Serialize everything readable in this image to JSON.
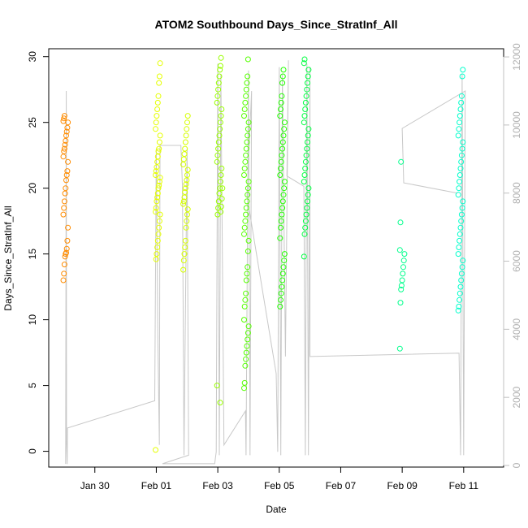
{
  "chart_data": {
    "type": "scatter",
    "title": "ATOM2 Southbound Days_Since_StratInf_All",
    "xlabel": "Date",
    "ylabel": "Days_Since_StratInf_All",
    "x_ticks": [
      "Jan 30",
      "Feb 01",
      "Feb 03",
      "Feb 05",
      "Feb 07",
      "Feb 09",
      "Feb 11"
    ],
    "x_tick_values": [
      0,
      2,
      4,
      6,
      8,
      10,
      12
    ],
    "xlim": [
      -1.5,
      13.3
    ],
    "ylim": [
      -1.2,
      30.6
    ],
    "yticks": [
      0,
      5,
      10,
      15,
      20,
      25,
      30
    ],
    "y2lim": [
      -48,
      12240
    ],
    "y2ticks": [
      0,
      2000,
      4000,
      6000,
      8000,
      10000,
      12000
    ],
    "y2_color": "#c0c0c0",
    "line_color": "#c8c8c8",
    "series": [
      {
        "color": "#ff8c00",
        "clusters": [
          {
            "x": -0.95,
            "y": [
              13,
              13.5,
              14.2,
              14.8,
              15,
              15.1,
              15.4,
              16,
              17,
              18,
              18.5,
              19,
              19.6,
              20,
              20.6,
              21,
              21.3,
              22,
              22.4,
              22.8,
              23,
              23.3,
              23.6,
              24,
              24.3,
              24.6,
              25,
              25.1,
              25.3,
              25.5
            ]
          }
        ]
      },
      {
        "color": "#e5ff00",
        "clusters": [
          {
            "x": 2.05,
            "y": [
              0.1,
              14.6,
              15,
              15.5,
              16,
              16.5,
              17,
              17.5,
              18,
              18.2,
              18.5,
              19,
              19.3,
              19.6,
              20,
              20.2,
              20.5,
              20.8,
              21,
              21.3,
              21.6,
              22,
              22.4,
              22.8,
              23,
              23.5,
              24,
              24.5,
              25,
              25.5,
              26,
              26.5,
              27,
              28,
              28.5,
              29.5
            ]
          }
        ]
      },
      {
        "color": "#d6ff00",
        "clusters": [
          {
            "x": 2.95,
            "y": [
              13.8,
              14.5,
              15,
              15.5,
              16,
              17,
              17.5,
              18,
              18.4,
              18.8,
              19,
              19.3,
              19.7,
              20,
              20.3,
              20.6,
              21,
              21.4,
              21.8,
              22.2,
              22.6,
              23,
              23.5,
              24,
              24.5,
              25,
              25.5
            ]
          }
        ]
      },
      {
        "color": "#99ff00",
        "clusters": [
          {
            "x": 4.05,
            "y": [
              5,
              18,
              18.5,
              19,
              19.6,
              20,
              20.5,
              21,
              21.5,
              22,
              22.5,
              23,
              23.5,
              24,
              24.5,
              25,
              25.5,
              26,
              26.5,
              27,
              27.5,
              28,
              28.5,
              29,
              29.3,
              29.9
            ]
          },
          {
            "x": 4.15,
            "y": [
              3.7,
              18.2,
              18.6,
              19.2,
              20
            ]
          }
        ]
      },
      {
        "color": "#55ff00",
        "clusters": [
          {
            "x": 4.93,
            "y": [
              4.8,
              5.2,
              6.5,
              7,
              7.5,
              8,
              8.5,
              9,
              9.5,
              10,
              11,
              11.5,
              12,
              13,
              13.5,
              14,
              15.2,
              16,
              16.5,
              17,
              17.5,
              18,
              18.5,
              19,
              19.5,
              20,
              20.5,
              21,
              21.5,
              22,
              22.5,
              23,
              23.5,
              24,
              24.5,
              25,
              25.5,
              26,
              26.5,
              27,
              27.5,
              28,
              28.5,
              29.8
            ]
          }
        ]
      },
      {
        "color": "#22ff00",
        "clusters": [
          {
            "x": 6.1,
            "y": [
              11,
              11.5,
              12,
              12.5,
              13,
              13.5,
              14,
              14.5,
              15,
              16.2,
              17,
              17.5,
              18,
              18.5,
              19,
              19.5,
              20,
              20.5,
              21,
              21.5,
              22,
              22.5,
              23,
              23.5,
              24,
              24.5,
              25,
              25.5,
              26,
              26.5,
              27,
              28,
              28.5,
              29
            ]
          }
        ]
      },
      {
        "color": "#00ff40",
        "clusters": [
          {
            "x": 6.88,
            "y": [
              14.8,
              16.5,
              17,
              17.5,
              18,
              18.5,
              19,
              19.5,
              20,
              20.5,
              21,
              21.5,
              22,
              22.5,
              23,
              23.5,
              24,
              24.5,
              25,
              25.5,
              26,
              26.5,
              27,
              27.5,
              28,
              28.5,
              29,
              29.5,
              29.8
            ]
          }
        ]
      },
      {
        "color": "#00ff8c",
        "clusters": [
          {
            "x": 10.0,
            "y": [
              7.8,
              11.3,
              12.3,
              12.6,
              13,
              13.5,
              14,
              14.5,
              15,
              15.3,
              17.4,
              22
            ]
          }
        ]
      },
      {
        "color": "#00ffcc",
        "clusters": [
          {
            "x": 11.9,
            "y": [
              10.7,
              11,
              11.5,
              12,
              12.5,
              13,
              13.5,
              14,
              14.5,
              15,
              15.5,
              16,
              16.5,
              17,
              17.5,
              18,
              18.5,
              19,
              19.5,
              20,
              20.5,
              21,
              21.5,
              22,
              22.5,
              23,
              23.5,
              24,
              24.5,
              25,
              25.5,
              26,
              26.5,
              27,
              28.5,
              29
            ]
          }
        ]
      }
    ]
  }
}
